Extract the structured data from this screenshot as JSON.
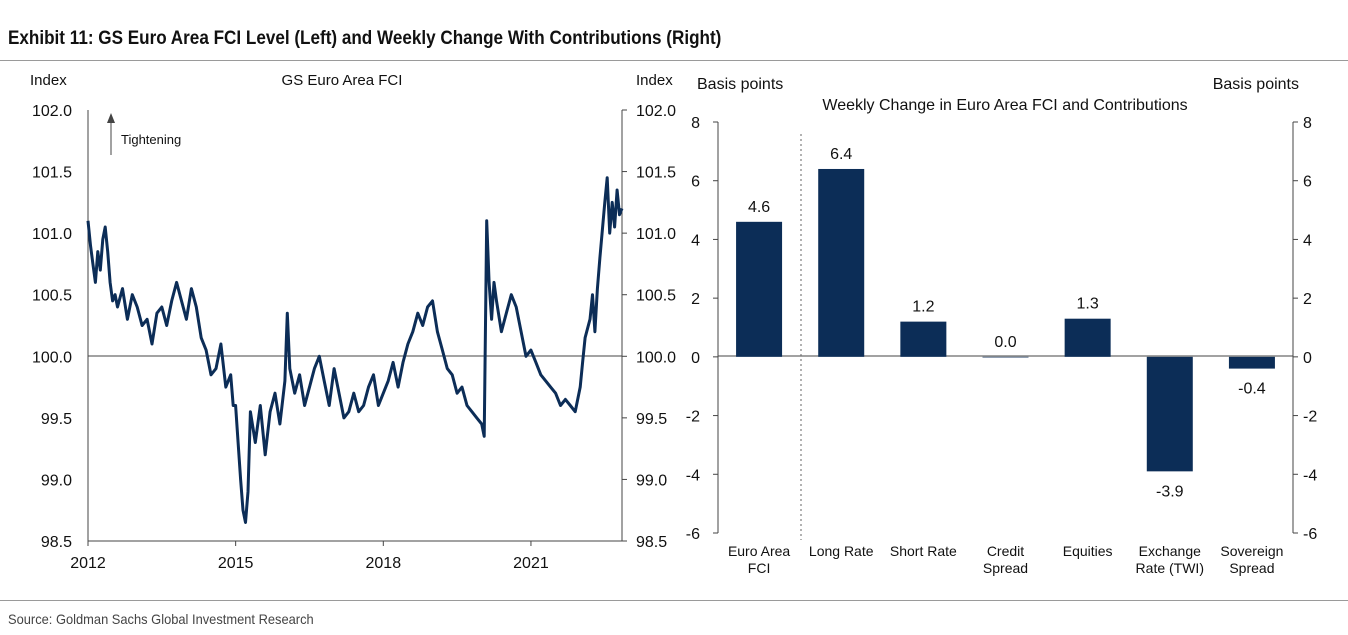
{
  "exhibit_title": "Exhibit 11: GS Euro Area FCI Level (Left) and Weekly Change With Contributions (Right)",
  "source": "Source: Goldman Sachs Global Investment Research",
  "colors": {
    "navy": "#0c2d57",
    "axis": "#444444",
    "rule": "#9a9a9a"
  },
  "chart_data": [
    {
      "type": "line",
      "title": "GS Euro Area FCI",
      "ylabel_left": "Index",
      "ylabel_right": "Index",
      "annotation": "Tightening",
      "annotation_icon": "up-arrow-icon",
      "ylim": [
        98.5,
        102.0
      ],
      "xlim": [
        2012.0,
        2022.85
      ],
      "y_ticks": [
        "102.0",
        "101.5",
        "101.0",
        "100.5",
        "100.0",
        "99.5",
        "99.0",
        "98.5"
      ],
      "y_tick_values": [
        102.0,
        101.5,
        101.0,
        100.5,
        100.0,
        99.5,
        99.0,
        98.5
      ],
      "x_ticks": [
        "2012",
        "2015",
        "2018",
        "2021"
      ],
      "x_tick_values": [
        2012,
        2015,
        2018,
        2021
      ],
      "reference_line": 100.0,
      "series": [
        {
          "name": "GS Euro Area FCI",
          "x": [
            2012.0,
            2012.05,
            2012.1,
            2012.15,
            2012.2,
            2012.25,
            2012.3,
            2012.35,
            2012.4,
            2012.45,
            2012.5,
            2012.55,
            2012.6,
            2012.7,
            2012.8,
            2012.9,
            2013.0,
            2013.1,
            2013.2,
            2013.3,
            2013.4,
            2013.5,
            2013.6,
            2013.7,
            2013.8,
            2013.9,
            2014.0,
            2014.1,
            2014.2,
            2014.3,
            2014.4,
            2014.5,
            2014.6,
            2014.7,
            2014.8,
            2014.9,
            2014.95,
            2015.0,
            2015.05,
            2015.1,
            2015.15,
            2015.2,
            2015.25,
            2015.3,
            2015.4,
            2015.5,
            2015.6,
            2015.7,
            2015.8,
            2015.9,
            2016.0,
            2016.05,
            2016.1,
            2016.2,
            2016.3,
            2016.4,
            2016.5,
            2016.6,
            2016.7,
            2016.8,
            2016.9,
            2017.0,
            2017.1,
            2017.2,
            2017.3,
            2017.4,
            2017.5,
            2017.6,
            2017.7,
            2017.8,
            2017.9,
            2018.0,
            2018.1,
            2018.2,
            2018.3,
            2018.4,
            2018.5,
            2018.6,
            2018.7,
            2018.8,
            2018.9,
            2019.0,
            2019.1,
            2019.2,
            2019.3,
            2019.4,
            2019.5,
            2019.6,
            2019.7,
            2019.8,
            2019.9,
            2020.0,
            2020.05,
            2020.1,
            2020.15,
            2020.2,
            2020.25,
            2020.3,
            2020.4,
            2020.5,
            2020.6,
            2020.7,
            2020.8,
            2020.9,
            2021.0,
            2021.1,
            2021.2,
            2021.3,
            2021.4,
            2021.5,
            2021.6,
            2021.7,
            2021.8,
            2021.9,
            2022.0,
            2022.05,
            2022.1,
            2022.2,
            2022.25,
            2022.3,
            2022.35,
            2022.4,
            2022.5,
            2022.55,
            2022.6,
            2022.65,
            2022.7,
            2022.75,
            2022.8,
            2022.85
          ],
          "values": [
            101.1,
            100.9,
            100.75,
            100.6,
            100.85,
            100.7,
            100.95,
            101.05,
            100.85,
            100.6,
            100.45,
            100.5,
            100.4,
            100.55,
            100.3,
            100.5,
            100.4,
            100.25,
            100.3,
            100.1,
            100.35,
            100.4,
            100.25,
            100.45,
            100.6,
            100.45,
            100.3,
            100.55,
            100.4,
            100.15,
            100.05,
            99.85,
            99.9,
            100.1,
            99.75,
            99.85,
            99.6,
            99.6,
            99.3,
            99.0,
            98.75,
            98.65,
            98.9,
            99.55,
            99.3,
            99.6,
            99.2,
            99.55,
            99.7,
            99.45,
            99.8,
            100.35,
            99.9,
            99.7,
            99.85,
            99.6,
            99.75,
            99.9,
            100.0,
            99.8,
            99.6,
            99.9,
            99.7,
            99.5,
            99.55,
            99.7,
            99.55,
            99.6,
            99.75,
            99.85,
            99.6,
            99.7,
            99.8,
            99.95,
            99.75,
            99.95,
            100.1,
            100.2,
            100.35,
            100.25,
            100.4,
            100.45,
            100.2,
            100.05,
            99.9,
            99.85,
            99.7,
            99.75,
            99.6,
            99.55,
            99.5,
            99.45,
            99.35,
            101.1,
            100.6,
            100.3,
            100.6,
            100.45,
            100.2,
            100.35,
            100.5,
            100.4,
            100.2,
            100.0,
            100.05,
            99.95,
            99.85,
            99.8,
            99.75,
            99.7,
            99.6,
            99.65,
            99.6,
            99.55,
            99.75,
            99.95,
            100.15,
            100.3,
            100.5,
            100.2,
            100.55,
            100.8,
            101.25,
            101.45,
            101.0,
            101.25,
            101.05,
            101.35,
            101.15,
            101.2
          ]
        }
      ]
    },
    {
      "type": "bar",
      "title": "Weekly Change in Euro Area FCI and Contributions",
      "ylabel_left": "Basis points",
      "ylabel_right": "Basis points",
      "ylim": [
        -6,
        8
      ],
      "y_ticks": [
        "8",
        "6",
        "4",
        "2",
        "0",
        "-2",
        "-4",
        "-6"
      ],
      "y_tick_values": [
        8,
        6,
        4,
        2,
        0,
        -2,
        -4,
        -6
      ],
      "categories": [
        [
          "Euro Area",
          "FCI"
        ],
        [
          "Long Rate"
        ],
        [
          "Short Rate"
        ],
        [
          "Credit",
          "Spread"
        ],
        [
          "Equities"
        ],
        [
          "Exchange",
          "Rate (TWI)"
        ],
        [
          "Sovereign",
          "Spread"
        ]
      ],
      "values": [
        4.6,
        6.4,
        1.2,
        0.0,
        1.3,
        -3.9,
        -0.4
      ],
      "data_labels": [
        "4.6",
        "6.4",
        "1.2",
        "0.0",
        "1.3",
        "-3.9",
        "-0.4"
      ]
    }
  ]
}
